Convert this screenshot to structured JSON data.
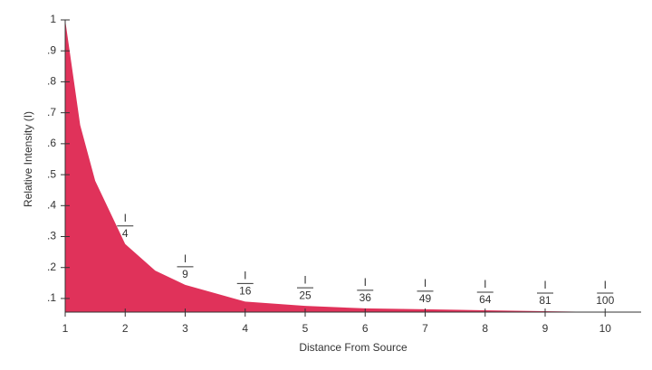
{
  "chart_data": {
    "type": "area",
    "x_label": "Distance From Source",
    "y_label": "Relative Intensity (I)",
    "x": [
      1,
      1.25,
      1.5,
      2,
      2.5,
      3,
      4,
      5,
      6,
      7,
      8,
      9,
      10
    ],
    "values": [
      1,
      0.66,
      0.48,
      0.276,
      0.19,
      0.144,
      0.09,
      0.076,
      0.068,
      0.065,
      0.062,
      0.059,
      0.056
    ],
    "color": "#e0325a",
    "xlim": [
      1,
      10.6
    ],
    "ylim": [
      0.056,
      1
    ],
    "xticks": [
      1,
      2,
      3,
      4,
      5,
      6,
      7,
      8,
      9,
      10
    ],
    "yticks": [
      {
        "value": 0.1,
        "label": ".1"
      },
      {
        "value": 0.2,
        "label": ".2"
      },
      {
        "value": 0.3,
        "label": ".3"
      },
      {
        "value": 0.4,
        "label": ".4"
      },
      {
        "value": 0.5,
        "label": ".5"
      },
      {
        "value": 0.6,
        "label": ".6"
      },
      {
        "value": 0.7,
        "label": ".7"
      },
      {
        "value": 0.8,
        "label": ".8"
      },
      {
        "value": 0.9,
        "label": ".9"
      },
      1
    ],
    "annotations": [
      {
        "x": 2,
        "numerator": "I",
        "denominator": "4"
      },
      {
        "x": 3,
        "numerator": "I",
        "denominator": "9"
      },
      {
        "x": 4,
        "numerator": "I",
        "denominator": "16"
      },
      {
        "x": 5,
        "numerator": "I",
        "denominator": "25"
      },
      {
        "x": 6,
        "numerator": "I",
        "denominator": "36"
      },
      {
        "x": 7,
        "numerator": "I",
        "denominator": "49"
      },
      {
        "x": 8,
        "numerator": "I",
        "denominator": "64"
      },
      {
        "x": 9,
        "numerator": "I",
        "denominator": "81"
      },
      {
        "x": 10,
        "numerator": "I",
        "denominator": "100"
      }
    ]
  }
}
